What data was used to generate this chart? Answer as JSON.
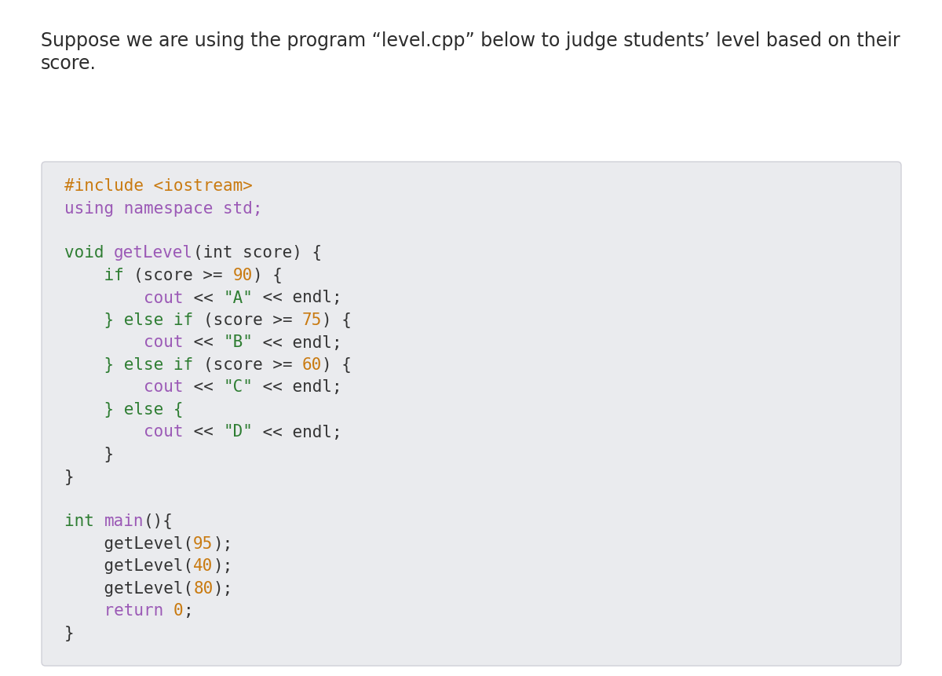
{
  "page_bg": "#ffffff",
  "title_line1": "Suppose we are using the program “level.cpp” below to judge students’ level based on their",
  "title_line2": "score.",
  "title_color": "#2c2c2c",
  "title_fontsize": 17,
  "code_box_bg": "#eaebee",
  "code_box_border": "#d0d0d8",
  "code_fontsize": 15,
  "lines": [
    [
      {
        "text": "#include <iostream>",
        "color": "#c97a10"
      }
    ],
    [
      {
        "text": "using namespace std;",
        "color": "#9b59b6"
      }
    ],
    [],
    [
      {
        "text": "void ",
        "color": "#2e7d32"
      },
      {
        "text": "getLevel",
        "color": "#9b59b6"
      },
      {
        "text": "(int score) {",
        "color": "#333333"
      }
    ],
    [
      {
        "text": "    if ",
        "color": "#2e7d32"
      },
      {
        "text": "(score >= ",
        "color": "#333333"
      },
      {
        "text": "90",
        "color": "#c97a10"
      },
      {
        "text": ") {",
        "color": "#333333"
      }
    ],
    [
      {
        "text": "        cout",
        "color": "#9b59b6"
      },
      {
        "text": " << ",
        "color": "#333333"
      },
      {
        "text": "\"A\"",
        "color": "#2e7d32"
      },
      {
        "text": " << endl;",
        "color": "#333333"
      }
    ],
    [
      {
        "text": "    } else if ",
        "color": "#2e7d32"
      },
      {
        "text": "(score >= ",
        "color": "#333333"
      },
      {
        "text": "75",
        "color": "#c97a10"
      },
      {
        "text": ") {",
        "color": "#333333"
      }
    ],
    [
      {
        "text": "        cout",
        "color": "#9b59b6"
      },
      {
        "text": " << ",
        "color": "#333333"
      },
      {
        "text": "\"B\"",
        "color": "#2e7d32"
      },
      {
        "text": " << endl;",
        "color": "#333333"
      }
    ],
    [
      {
        "text": "    } else if ",
        "color": "#2e7d32"
      },
      {
        "text": "(score >= ",
        "color": "#333333"
      },
      {
        "text": "60",
        "color": "#c97a10"
      },
      {
        "text": ") {",
        "color": "#333333"
      }
    ],
    [
      {
        "text": "        cout",
        "color": "#9b59b6"
      },
      {
        "text": " << ",
        "color": "#333333"
      },
      {
        "text": "\"C\"",
        "color": "#2e7d32"
      },
      {
        "text": " << endl;",
        "color": "#333333"
      }
    ],
    [
      {
        "text": "    } else {",
        "color": "#2e7d32"
      }
    ],
    [
      {
        "text": "        cout",
        "color": "#9b59b6"
      },
      {
        "text": " << ",
        "color": "#333333"
      },
      {
        "text": "\"D\"",
        "color": "#2e7d32"
      },
      {
        "text": " << endl;",
        "color": "#333333"
      }
    ],
    [
      {
        "text": "    }",
        "color": "#333333"
      }
    ],
    [
      {
        "text": "}",
        "color": "#333333"
      }
    ],
    [],
    [
      {
        "text": "int ",
        "color": "#2e7d32"
      },
      {
        "text": "main",
        "color": "#9b59b6"
      },
      {
        "text": "(){",
        "color": "#333333"
      }
    ],
    [
      {
        "text": "    getLevel(",
        "color": "#333333"
      },
      {
        "text": "95",
        "color": "#c97a10"
      },
      {
        "text": ");",
        "color": "#333333"
      }
    ],
    [
      {
        "text": "    getLevel(",
        "color": "#333333"
      },
      {
        "text": "40",
        "color": "#c97a10"
      },
      {
        "text": ");",
        "color": "#333333"
      }
    ],
    [
      {
        "text": "    getLevel(",
        "color": "#333333"
      },
      {
        "text": "80",
        "color": "#c97a10"
      },
      {
        "text": ");",
        "color": "#333333"
      }
    ],
    [
      {
        "text": "    return ",
        "color": "#9b59b6"
      },
      {
        "text": "0",
        "color": "#c97a10"
      },
      {
        "text": ";",
        "color": "#333333"
      }
    ],
    [
      {
        "text": "}",
        "color": "#333333"
      }
    ]
  ]
}
